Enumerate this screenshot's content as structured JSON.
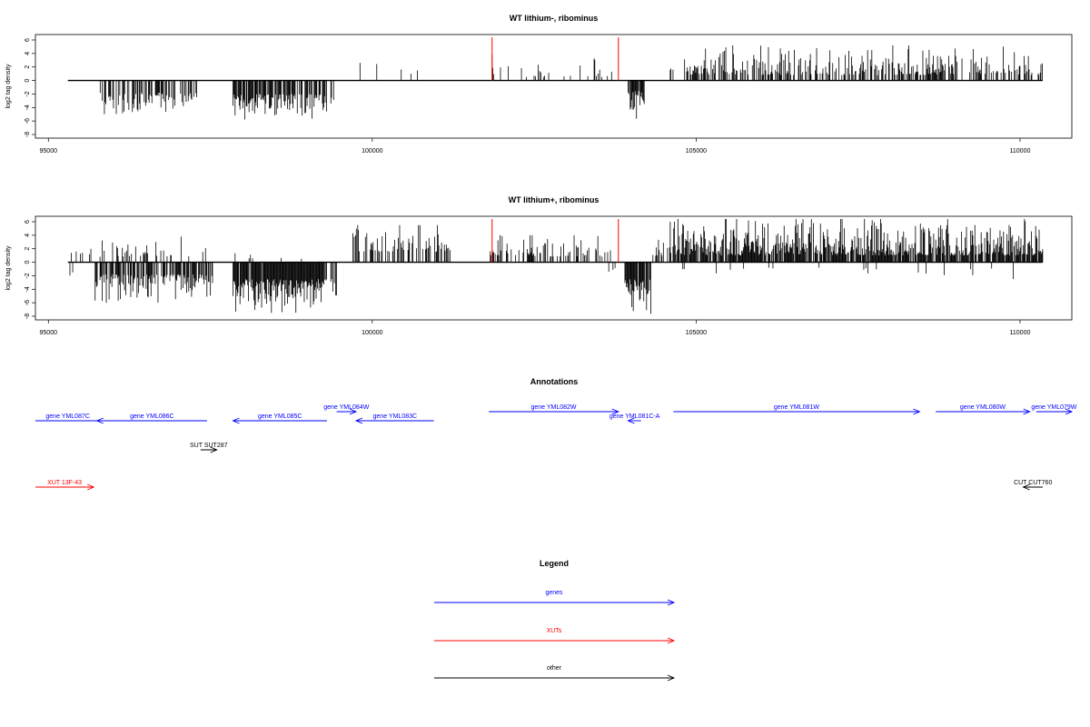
{
  "chart_data": [
    {
      "type": "bar",
      "title": "WT lithium-, ribominus",
      "ylabel": "log2 tag density",
      "xlabel": "",
      "xlim": [
        94800,
        110800
      ],
      "ylim": [
        -8,
        6
      ],
      "x_ticks": [
        95000,
        100000,
        105000,
        110000
      ],
      "y_ticks": [
        -8,
        -6,
        -4,
        -2,
        0,
        2,
        4,
        6
      ],
      "grid": false,
      "colors": {
        "bars": "#000000",
        "markers": "#ff0000"
      },
      "markers": [
        101850,
        103800
      ],
      "segments": [
        {
          "start": 95800,
          "end": 97300,
          "sign": -1,
          "amp": [
            1.8,
            5.5
          ],
          "dens": 0.45
        },
        {
          "start": 97850,
          "end": 99300,
          "sign": -1,
          "amp": [
            2.0,
            6.0
          ],
          "dens": 0.75
        },
        {
          "start": 99350,
          "end": 99420,
          "sign": -1,
          "amp": [
            2.5,
            5.0
          ],
          "dens": 0.6
        },
        {
          "start": 99800,
          "end": 100950,
          "sign": 1,
          "amp": [
            1.0,
            4.2
          ],
          "dens": 0.08
        },
        {
          "start": 101850,
          "end": 103700,
          "sign": 1,
          "amp": [
            0.5,
            3.8
          ],
          "dens": 0.14
        },
        {
          "start": 103950,
          "end": 104200,
          "sign": -1,
          "amp": [
            1.5,
            6.8
          ],
          "dens": 0.75
        },
        {
          "start": 104600,
          "end": 104650,
          "sign": 1,
          "amp": [
            1.5,
            2.5
          ],
          "dens": 0.4
        },
        {
          "start": 104800,
          "end": 110350,
          "sign": 1,
          "amp": [
            0.8,
            5.2
          ],
          "dens": 0.5
        }
      ]
    },
    {
      "type": "bar",
      "title": "WT lithium+, ribominus",
      "ylabel": "log2 tag density",
      "xlabel": "",
      "xlim": [
        94800,
        110800
      ],
      "ylim": [
        -8,
        6
      ],
      "x_ticks": [
        95000,
        100000,
        105000,
        110000
      ],
      "y_ticks": [
        -8,
        -6,
        -4,
        -2,
        0,
        2,
        4,
        6
      ],
      "grid": false,
      "colors": {
        "bars": "#000000",
        "markers": "#ff0000"
      },
      "markers": [
        101850,
        103800
      ],
      "segments": [
        {
          "start": 95300,
          "end": 95700,
          "sign": 1,
          "amp": [
            1.0,
            3.0
          ],
          "dens": 0.25
        },
        {
          "start": 95300,
          "end": 95400,
          "sign": -1,
          "amp": [
            1.5,
            3.0
          ],
          "dens": 0.3
        },
        {
          "start": 95700,
          "end": 97550,
          "sign": -1,
          "amp": [
            1.8,
            6.0
          ],
          "dens": 0.65
        },
        {
          "start": 95700,
          "end": 97550,
          "sign": 1,
          "amp": [
            0.8,
            3.8
          ],
          "dens": 0.14
        },
        {
          "start": 97850,
          "end": 99300,
          "sign": -1,
          "amp": [
            2.5,
            7.8
          ],
          "dens": 0.95
        },
        {
          "start": 97850,
          "end": 99300,
          "sign": 1,
          "amp": [
            0.5,
            1.8
          ],
          "dens": 0.08
        },
        {
          "start": 99350,
          "end": 99450,
          "sign": -1,
          "amp": [
            2.5,
            5.5
          ],
          "dens": 0.6
        },
        {
          "start": 99700,
          "end": 101200,
          "sign": 1,
          "amp": [
            1.5,
            5.5
          ],
          "dens": 0.4
        },
        {
          "start": 101800,
          "end": 103700,
          "sign": 1,
          "amp": [
            0.8,
            4.0
          ],
          "dens": 0.4
        },
        {
          "start": 103500,
          "end": 103900,
          "sign": -1,
          "amp": [
            0.8,
            2.5
          ],
          "dens": 0.14
        },
        {
          "start": 103900,
          "end": 104300,
          "sign": -1,
          "amp": [
            2.5,
            7.8
          ],
          "dens": 0.9
        },
        {
          "start": 104300,
          "end": 104600,
          "sign": 1,
          "amp": [
            0.8,
            3.8
          ],
          "dens": 0.3
        },
        {
          "start": 104600,
          "end": 110350,
          "sign": 1,
          "amp": [
            1.0,
            6.4
          ],
          "dens": 0.85
        },
        {
          "start": 104600,
          "end": 110350,
          "sign": -1,
          "amp": [
            0.8,
            3.0
          ],
          "dens": 0.03
        }
      ]
    }
  ],
  "annotations": {
    "title": "Annotations",
    "features": [
      {
        "label": "gene YML087C",
        "start": 94800,
        "end": 95800,
        "strand": "-",
        "color": "#0000ff",
        "row": 1,
        "arrowhead": false
      },
      {
        "label": "gene YML086C",
        "start": 95750,
        "end": 97450,
        "strand": "-",
        "color": "#0000ff",
        "row": 1,
        "arrowhead": true
      },
      {
        "label": "gene YML085C",
        "start": 97850,
        "end": 99300,
        "strand": "-",
        "color": "#0000ff",
        "row": 1,
        "arrowhead": true
      },
      {
        "label": "gene YML084W",
        "start": 99450,
        "end": 99750,
        "strand": "+",
        "color": "#0000ff",
        "row": 0,
        "arrowhead": true
      },
      {
        "label": "gene YML083C",
        "start": 99750,
        "end": 100950,
        "strand": "-",
        "color": "#0000ff",
        "row": 1,
        "arrowhead": true
      },
      {
        "label": "gene YML082W",
        "start": 101800,
        "end": 103800,
        "strand": "+",
        "color": "#0000ff",
        "row": 0,
        "arrowhead": true
      },
      {
        "label": "gene YML081C-A",
        "start": 103950,
        "end": 104150,
        "strand": "-",
        "color": "#0000ff",
        "row": 1,
        "arrowhead": true
      },
      {
        "label": "gene YML081W",
        "start": 104650,
        "end": 108450,
        "strand": "+",
        "color": "#0000ff",
        "row": 0,
        "arrowhead": true
      },
      {
        "label": "gene YML080W",
        "start": 108700,
        "end": 110150,
        "strand": "+",
        "color": "#0000ff",
        "row": 0,
        "arrowhead": true
      },
      {
        "label": "gene YML079W",
        "start": 110250,
        "end": 110950,
        "strand": "+",
        "color": "#0000ff",
        "row": 0,
        "arrowhead": true
      },
      {
        "label": "SUT SUT287",
        "start": 97350,
        "end": 97600,
        "strand": "+",
        "color": "#000000",
        "row": 2,
        "arrowhead": true
      },
      {
        "label": "XUT 13F-43",
        "start": 94800,
        "end": 95700,
        "strand": "+",
        "color": "#ff0000",
        "row": 3,
        "arrowhead": true
      },
      {
        "label": "CUT CUT760",
        "start": 110050,
        "end": 110350,
        "strand": "-",
        "color": "#000000",
        "row": 3,
        "arrowhead": true
      }
    ]
  },
  "legend": {
    "title": "Legend",
    "items": [
      {
        "label": "genes",
        "color": "#0000ff"
      },
      {
        "label": "XUTs",
        "color": "#ff0000"
      },
      {
        "label": "other",
        "color": "#000000"
      }
    ]
  }
}
